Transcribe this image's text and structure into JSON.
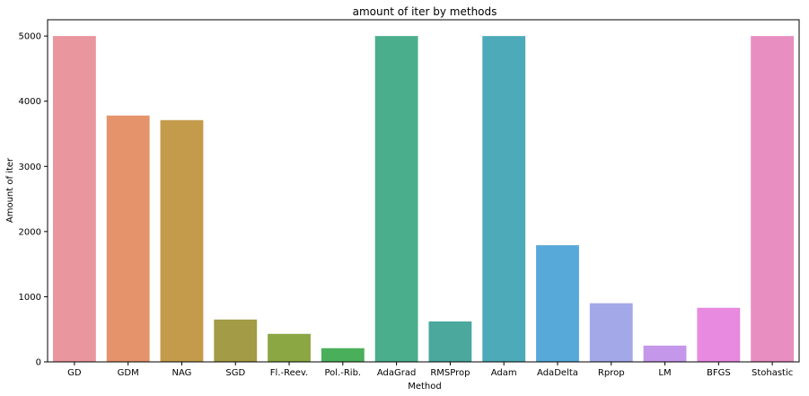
{
  "chart_data": {
    "type": "bar",
    "title": "amount of iter by methods",
    "xlabel": "Method",
    "ylabel": "Amount of iter",
    "categories": [
      "GD",
      "GDM",
      "NAG",
      "SGD",
      "Fl.-Reev.",
      "Pol.-Rib.",
      "AdaGrad",
      "RMSProp",
      "Adam",
      "AdaDelta",
      "Rprop",
      "LM",
      "BFGS",
      "Stohastic"
    ],
    "values": [
      5000,
      3780,
      3710,
      650,
      430,
      210,
      5000,
      620,
      5000,
      1790,
      900,
      250,
      830,
      5000
    ],
    "colors": [
      "#e9969f",
      "#e4936a",
      "#c39b4a",
      "#a39b45",
      "#8aa744",
      "#4aaf5a",
      "#4aae8c",
      "#4aa89d",
      "#4daab9",
      "#56a9d8",
      "#a2a8e8",
      "#c597ea",
      "#e78ae0",
      "#e88ec1"
    ],
    "ylim": [
      0,
      5250
    ],
    "yticks": [
      0,
      1000,
      2000,
      3000,
      4000,
      5000
    ],
    "grid": false
  }
}
